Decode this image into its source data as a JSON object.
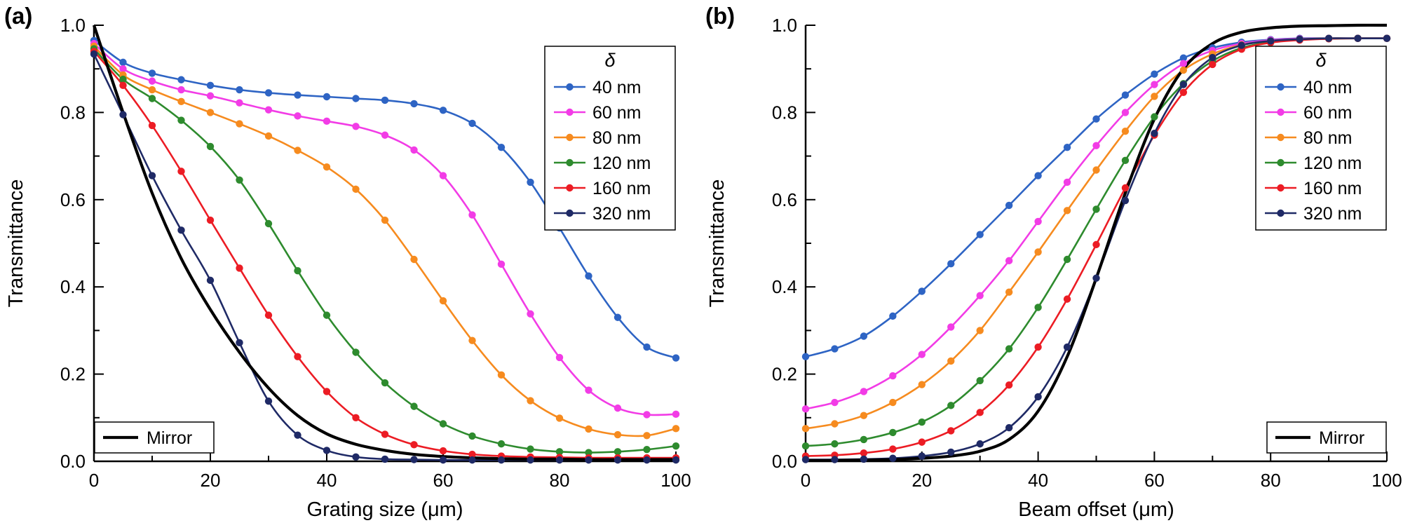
{
  "figure": {
    "background": "#ffffff",
    "text_color": "#000000",
    "axis_color": "#000000"
  },
  "chart_data": [
    {
      "type": "line",
      "panel_label": "(a)",
      "xlabel": "Grating size (μm)",
      "ylabel": "Transmittance",
      "xlim": [
        0,
        100
      ],
      "ylim": [
        0.0,
        1.0
      ],
      "x_major_tick_step": 20,
      "x_minor_tick_step": 10,
      "y_major_tick_step": 0.2,
      "y_minor_tick_step": 0.1,
      "grid": false,
      "legend": {
        "title": "δ",
        "position": "top-right"
      },
      "mirror_legend": {
        "label": "Mirror",
        "position": "bottom-left"
      },
      "x": [
        0,
        5,
        10,
        15,
        20,
        25,
        30,
        35,
        40,
        45,
        50,
        55,
        60,
        65,
        70,
        75,
        80,
        85,
        90,
        95,
        100
      ],
      "series": [
        {
          "name": "40 nm",
          "color": "#2e64c4",
          "marker": "circle",
          "legend": "delta",
          "values": [
            0.965,
            0.915,
            0.89,
            0.875,
            0.862,
            0.852,
            0.845,
            0.84,
            0.836,
            0.832,
            0.828,
            0.82,
            0.805,
            0.775,
            0.72,
            0.64,
            0.535,
            0.425,
            0.33,
            0.262,
            0.237
          ]
        },
        {
          "name": "60 nm",
          "color": "#f23ce6",
          "marker": "circle",
          "legend": "delta",
          "values": [
            0.958,
            0.9,
            0.872,
            0.852,
            0.838,
            0.822,
            0.806,
            0.792,
            0.78,
            0.768,
            0.748,
            0.714,
            0.655,
            0.565,
            0.452,
            0.338,
            0.238,
            0.163,
            0.122,
            0.107,
            0.108
          ]
        },
        {
          "name": "80 nm",
          "color": "#f68b1f",
          "marker": "circle",
          "legend": "delta",
          "values": [
            0.952,
            0.886,
            0.852,
            0.825,
            0.8,
            0.774,
            0.746,
            0.713,
            0.675,
            0.624,
            0.553,
            0.463,
            0.368,
            0.277,
            0.198,
            0.139,
            0.099,
            0.074,
            0.061,
            0.059,
            0.075
          ]
        },
        {
          "name": "120 nm",
          "color": "#2e8b2e",
          "marker": "circle",
          "legend": "delta",
          "values": [
            0.946,
            0.876,
            0.832,
            0.782,
            0.722,
            0.645,
            0.545,
            0.437,
            0.335,
            0.25,
            0.18,
            0.126,
            0.086,
            0.058,
            0.04,
            0.028,
            0.022,
            0.02,
            0.022,
            0.027,
            0.035
          ]
        },
        {
          "name": "160 nm",
          "color": "#ec1c24",
          "marker": "circle",
          "legend": "delta",
          "values": [
            0.94,
            0.862,
            0.77,
            0.665,
            0.553,
            0.443,
            0.335,
            0.24,
            0.16,
            0.1,
            0.062,
            0.038,
            0.024,
            0.016,
            0.012,
            0.01,
            0.009,
            0.008,
            0.008,
            0.008,
            0.008
          ]
        },
        {
          "name": "320 nm",
          "color": "#1f2a66",
          "marker": "circle",
          "legend": "delta",
          "values": [
            0.934,
            0.795,
            0.655,
            0.53,
            0.415,
            0.272,
            0.138,
            0.06,
            0.025,
            0.01,
            0.005,
            0.004,
            0.003,
            0.003,
            0.003,
            0.003,
            0.003,
            0.003,
            0.003,
            0.003,
            0.003
          ]
        },
        {
          "name": "Mirror",
          "color": "#000000",
          "marker": "none",
          "legend": "mirror",
          "values": [
            1.0,
            0.8,
            0.615,
            0.465,
            0.348,
            0.25,
            0.168,
            0.105,
            0.063,
            0.039,
            0.025,
            0.016,
            0.011,
            0.008,
            0.006,
            0.005,
            0.005,
            0.004,
            0.004,
            0.004,
            0.004
          ]
        }
      ]
    },
    {
      "type": "line",
      "panel_label": "(b)",
      "xlabel": "Beam offset (μm)",
      "ylabel": "Transmittance",
      "xlim": [
        0,
        100
      ],
      "ylim": [
        0.0,
        1.0
      ],
      "x_major_tick_step": 20,
      "x_minor_tick_step": 10,
      "y_major_tick_step": 0.2,
      "y_minor_tick_step": 0.1,
      "grid": false,
      "legend": {
        "title": "δ",
        "position": "top-right"
      },
      "mirror_legend": {
        "label": "Mirror",
        "position": "bottom-right"
      },
      "x": [
        0,
        5,
        10,
        15,
        20,
        25,
        30,
        35,
        40,
        45,
        50,
        55,
        60,
        65,
        70,
        75,
        80,
        85,
        90,
        95,
        100
      ],
      "series": [
        {
          "name": "40 nm",
          "color": "#2e64c4",
          "marker": "circle",
          "legend": "delta",
          "values": [
            0.24,
            0.258,
            0.287,
            0.333,
            0.39,
            0.453,
            0.52,
            0.587,
            0.655,
            0.72,
            0.785,
            0.84,
            0.888,
            0.925,
            0.948,
            0.961,
            0.967,
            0.97,
            0.97,
            0.97,
            0.97
          ]
        },
        {
          "name": "60 nm",
          "color": "#f23ce6",
          "marker": "circle",
          "legend": "delta",
          "values": [
            0.12,
            0.135,
            0.16,
            0.196,
            0.245,
            0.308,
            0.38,
            0.46,
            0.55,
            0.64,
            0.724,
            0.8,
            0.864,
            0.912,
            0.942,
            0.958,
            0.966,
            0.969,
            0.97,
            0.97,
            0.97
          ]
        },
        {
          "name": "80 nm",
          "color": "#f68b1f",
          "marker": "circle",
          "legend": "delta",
          "values": [
            0.075,
            0.086,
            0.105,
            0.135,
            0.176,
            0.23,
            0.3,
            0.388,
            0.48,
            0.575,
            0.668,
            0.757,
            0.837,
            0.897,
            0.934,
            0.955,
            0.964,
            0.968,
            0.97,
            0.97,
            0.97
          ]
        },
        {
          "name": "120 nm",
          "color": "#2e8b2e",
          "marker": "circle",
          "legend": "delta",
          "values": [
            0.035,
            0.04,
            0.05,
            0.066,
            0.09,
            0.128,
            0.185,
            0.258,
            0.353,
            0.463,
            0.578,
            0.69,
            0.79,
            0.866,
            0.918,
            0.948,
            0.961,
            0.967,
            0.969,
            0.97,
            0.97
          ]
        },
        {
          "name": "160 nm",
          "color": "#ec1c24",
          "marker": "circle",
          "legend": "delta",
          "values": [
            0.012,
            0.014,
            0.019,
            0.028,
            0.044,
            0.07,
            0.112,
            0.175,
            0.262,
            0.372,
            0.497,
            0.627,
            0.748,
            0.846,
            0.91,
            0.945,
            0.96,
            0.966,
            0.969,
            0.97,
            0.97
          ]
        },
        {
          "name": "320 nm",
          "color": "#1f2a66",
          "marker": "circle",
          "legend": "delta",
          "values": [
            0.004,
            0.004,
            0.005,
            0.007,
            0.012,
            0.021,
            0.04,
            0.077,
            0.148,
            0.262,
            0.42,
            0.598,
            0.752,
            0.864,
            0.926,
            0.954,
            0.964,
            0.968,
            0.97,
            0.97,
            0.97
          ]
        },
        {
          "name": "Mirror",
          "color": "#000000",
          "marker": "none",
          "legend": "mirror",
          "values": [
            0.002,
            0.002,
            0.003,
            0.004,
            0.007,
            0.012,
            0.023,
            0.05,
            0.115,
            0.24,
            0.42,
            0.615,
            0.785,
            0.9,
            0.958,
            0.984,
            0.994,
            0.998,
            0.999,
            1.0,
            1.0
          ]
        }
      ]
    }
  ]
}
